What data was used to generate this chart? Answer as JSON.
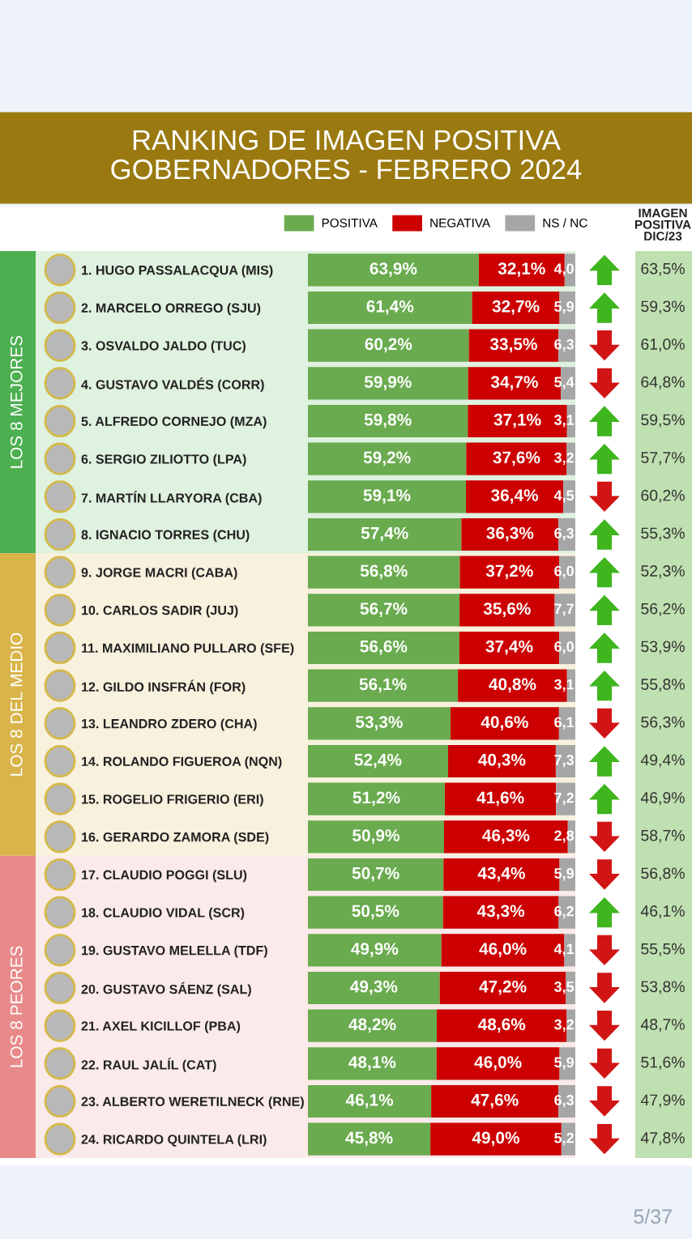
{
  "chart_data": {
    "type": "bar",
    "orientation": "horizontal",
    "stacked": true,
    "title": "RANKING DE IMAGEN POSITIVA\nGOBERNADORES - FEBRERO 2024",
    "categories": [
      "1. HUGO PASSALACQUA (MIS)",
      "2. MARCELO ORREGO (SJU)",
      "3. OSVALDO JALDO (TUC)",
      "4. GUSTAVO VALDÉS (CORR)",
      "5. ALFREDO CORNEJO (MZA)",
      "6. SERGIO ZILIOTTO (LPA)",
      "7. MARTÍN LLARYORA (CBA)",
      "8. IGNACIO TORRES (CHU)",
      "9. JORGE MACRI (CABA)",
      "10. CARLOS SADIR (JUJ)",
      "11. MAXIMILIANO PULLARO (SFE)",
      "12. GILDO INSFRÁN (FOR)",
      "13. LEANDRO ZDERO (CHA)",
      "14. ROLANDO FIGUEROA (NQN)",
      "15. ROGELIO FRIGERIO (ERI)",
      "16. GERARDO ZAMORA (SDE)",
      "17. CLAUDIO POGGI (SLU)",
      "18. CLAUDIO VIDAL (SCR)",
      "19. GUSTAVO MELELLA (TDF)",
      "20. GUSTAVO SÁENZ (SAL)",
      "21. AXEL KICILLOF (PBA)",
      "22. RAUL JALÍL (CAT)",
      "23. ALBERTO WERETILNECK (RNE)",
      "24. RICARDO QUINTELA (LRI)"
    ],
    "series": [
      {
        "name": "POSITIVA",
        "color": "#6aab4f",
        "values": [
          63.9,
          61.4,
          60.2,
          59.9,
          59.8,
          59.2,
          59.1,
          57.4,
          56.8,
          56.7,
          56.6,
          56.1,
          53.3,
          52.4,
          51.2,
          50.9,
          50.7,
          50.5,
          49.9,
          49.3,
          48.2,
          48.1,
          46.1,
          45.8
        ],
        "value_labels": [
          "63,9%",
          "61,4%",
          "60,2%",
          "59,9%",
          "59,8%",
          "59,2%",
          "59,1%",
          "57,4%",
          "56,8%",
          "56,7%",
          "56,6%",
          "56,1%",
          "53,3%",
          "52,4%",
          "51,2%",
          "50,9%",
          "50,7%",
          "50,5%",
          "49,9%",
          "49,3%",
          "48,2%",
          "48,1%",
          "46,1%",
          "45,8%"
        ]
      },
      {
        "name": "NEGATIVA",
        "color": "#cc0000",
        "values": [
          32.1,
          32.7,
          33.5,
          34.7,
          37.1,
          37.6,
          36.4,
          36.3,
          37.2,
          35.6,
          37.4,
          40.8,
          40.6,
          40.3,
          41.6,
          46.3,
          43.4,
          43.3,
          46.0,
          47.2,
          48.6,
          46.0,
          47.6,
          49.0
        ],
        "value_labels": [
          "32,1%",
          "32,7%",
          "33,5%",
          "34,7%",
          "37,1%",
          "37,6%",
          "36,4%",
          "36,3%",
          "37,2%",
          "35,6%",
          "37,4%",
          "40,8%",
          "40,6%",
          "40,3%",
          "41,6%",
          "46,3%",
          "43,4%",
          "43,3%",
          "46,0%",
          "47,2%",
          "48,6%",
          "46,0%",
          "47,6%",
          "49,0%"
        ]
      },
      {
        "name": "NS / NC",
        "color": "#a6a6a6",
        "values": [
          4.0,
          5.9,
          6.3,
          5.4,
          3.1,
          3.2,
          4.5,
          6.3,
          6.0,
          7.7,
          6.0,
          3.1,
          6.1,
          7.3,
          7.2,
          2.8,
          5.9,
          6.2,
          4.1,
          3.5,
          3.2,
          5.9,
          6.3,
          5.2
        ],
        "value_labels": [
          "4,0",
          "5,9",
          "6,3",
          "5,4",
          "3,1",
          "3,2",
          "4,5",
          "6,3",
          "6,0",
          "7,7",
          "6,0",
          "3,1",
          "6,1",
          "7,3",
          "7,2",
          "2,8",
          "5,9",
          "6,2",
          "4,1",
          "3,5",
          "3,2",
          "5,9",
          "6,3",
          "5,2"
        ]
      }
    ],
    "xlim": [
      0,
      100
    ],
    "tick_labels": false,
    "legend": "top",
    "grid": false,
    "bands": [
      {
        "axis": "y",
        "from": "1. HUGO PASSALACQUA (MIS)",
        "to": "8. IGNACIO TORRES (CHU)",
        "label": "LOS 8 MEJORES",
        "color": "#4caf50"
      },
      {
        "axis": "y",
        "from": "9. JORGE MACRI (CABA)",
        "to": "16. GERARDO ZAMORA (SDE)",
        "label": "LOS 8 DEL MEDIO",
        "color": "#d9b44a"
      },
      {
        "axis": "y",
        "from": "17. CLAUDIO POGGI (SLU)",
        "to": "24. RICARDO QUINTELA (LRI)",
        "label": "LOS 8 PEORES",
        "color": "#e88a8a"
      }
    ],
    "annotations": [
      "IMAGEN\nPOSITIVA\nDIC/23",
      "63,5%",
      "59,3%",
      "61,0%",
      "64,8%",
      "59,5%",
      "57,7%",
      "60,2%",
      "55,3%",
      "52,3%",
      "56,2%",
      "53,9%",
      "55,8%",
      "56,3%",
      "49,4%",
      "46,9%",
      "58,7%",
      "56,8%",
      "46,1%",
      "55,5%",
      "53,8%",
      "48,7%",
      "51,6%",
      "47,9%",
      "47,8%",
      "5/37"
    ]
  }
}
